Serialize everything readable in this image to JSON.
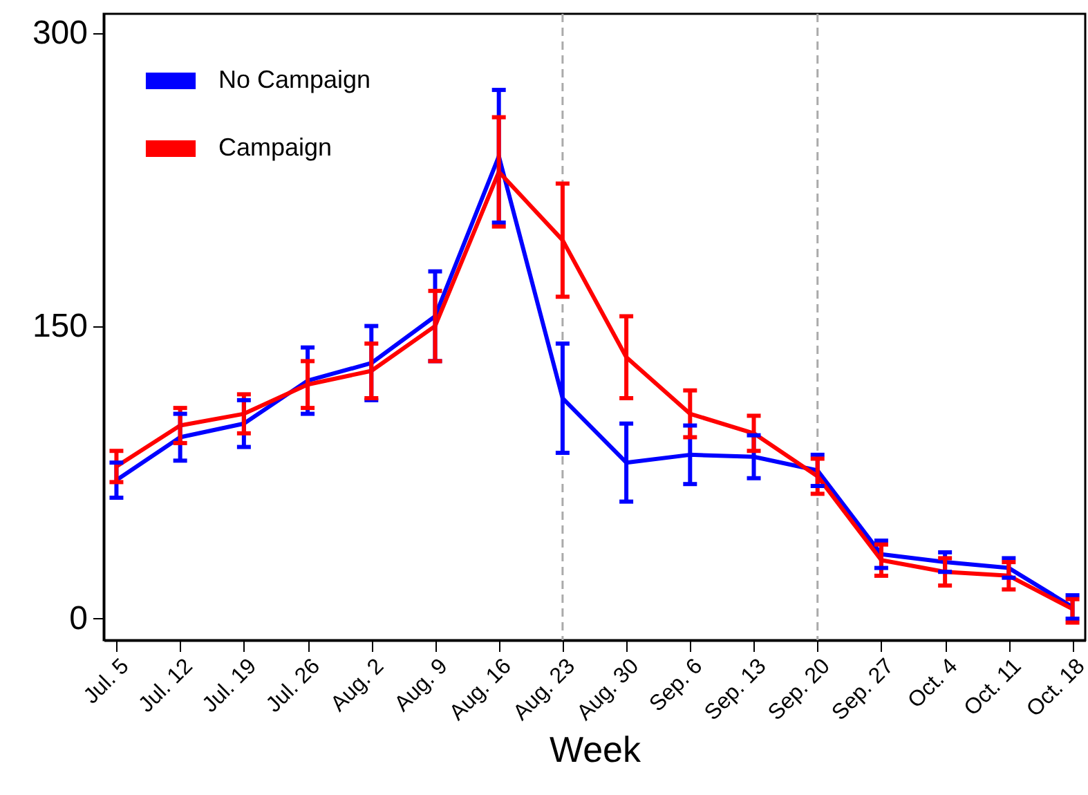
{
  "chart_data": {
    "type": "line",
    "xlabel": "Week",
    "categories": [
      "Jul. 5",
      "Jul. 12",
      "Jul. 19",
      "Jul. 26",
      "Aug. 2",
      "Aug. 9",
      "Aug. 16",
      "Aug. 23",
      "Aug. 30",
      "Sep. 6",
      "Sep. 13",
      "Sep. 20",
      "Sep. 27",
      "Oct. 4",
      "Oct. 11",
      "Oct. 18"
    ],
    "series": [
      {
        "name": "No Campaign",
        "color": "#0000ff",
        "values": [
          71,
          93,
          100,
          122,
          131,
          155,
          237,
          113,
          80,
          84,
          83,
          76,
          33,
          29,
          26,
          6
        ],
        "errors": [
          9,
          12,
          12,
          17,
          19,
          23,
          34,
          28,
          20,
          15,
          11,
          8,
          7,
          5,
          5,
          6
        ]
      },
      {
        "name": "Campaign",
        "color": "#ff0000",
        "values": [
          78,
          99,
          105,
          120,
          127,
          150,
          229,
          194,
          134,
          105,
          95,
          73,
          30,
          24,
          22,
          5
        ],
        "errors": [
          8,
          9,
          10,
          12,
          14,
          18,
          28,
          29,
          21,
          12,
          9,
          9,
          8,
          7,
          7,
          [
            -2,
            10
          ]
        ]
      }
    ],
    "ylim": [
      -11,
      310
    ],
    "yticks": [
      0,
      150,
      300
    ],
    "grid": false,
    "legend": "top left",
    "marker": "none",
    "line_style": "solid",
    "ref_lines": [
      {
        "axis": "x",
        "value": "Aug. 23",
        "color": "#aaaaaa",
        "line_style": "dashed"
      },
      {
        "axis": "x",
        "value": "Sep. 20",
        "color": "#aaaaaa",
        "line_style": "dashed"
      }
    ]
  }
}
